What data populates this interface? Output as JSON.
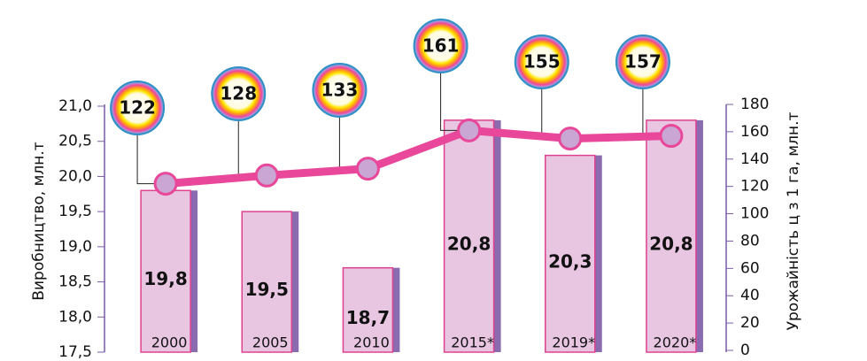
{
  "chart_data": {
    "type": "bar",
    "categories": [
      "2000",
      "2005",
      "2010",
      "2015*",
      "2019*",
      "2020*"
    ],
    "series": [
      {
        "type": "bar",
        "color": "#e8c6e2",
        "values": [
          19.8,
          19.5,
          18.7,
          20.8,
          20.3,
          20.8
        ],
        "value_labels": [
          "19,8",
          "19,5",
          "18,7",
          "20,8",
          "20,3",
          "20,8"
        ]
      },
      {
        "type": "line",
        "axis": "y2",
        "color": "#e8479a",
        "values": [
          122,
          128,
          133,
          161,
          155,
          157
        ]
      }
    ],
    "ylim": [
      17.5,
      21.0
    ],
    "yticks": [
      {
        "value": 17.5,
        "label": "17,5"
      },
      {
        "value": 18.0,
        "label": "18,0"
      },
      {
        "value": 18.5,
        "label": "18,5"
      },
      {
        "value": 19.0,
        "label": "19,0"
      },
      {
        "value": 19.5,
        "label": "19,5"
      },
      {
        "value": 20.0,
        "label": "20,0"
      },
      {
        "value": 20.5,
        "label": "20,5"
      },
      {
        "value": 21.0,
        "label": "21,0"
      }
    ],
    "y2lim": [
      0,
      180
    ],
    "y2ticks": [
      0,
      20,
      40,
      60,
      80,
      100,
      120,
      140,
      160,
      180
    ],
    "ylabel": "Виробництво, млн.т",
    "y2label": "Урожайність ц з 1 га, млн.т"
  }
}
